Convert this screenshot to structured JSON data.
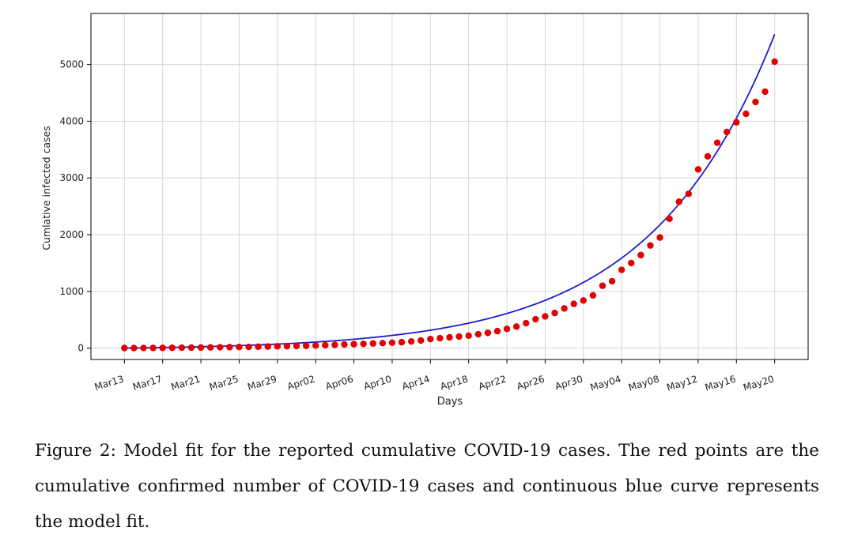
{
  "chart_data": {
    "type": "scatter",
    "xlabel": "Days",
    "ylabel": "Cumlative infected cases",
    "ylim": [
      -200,
      5900
    ],
    "yticks": [
      0,
      1000,
      2000,
      3000,
      4000,
      5000
    ],
    "xlim": [
      -3.5,
      71.5
    ],
    "grid": true,
    "x_tick_labels": [
      "Mar13",
      "Mar17",
      "Mar21",
      "Mar25",
      "Mar29",
      "Apr02",
      "Apr06",
      "Apr10",
      "Apr14",
      "Apr18",
      "Apr22",
      "Apr26",
      "Apr30",
      "May04",
      "May08",
      "May12",
      "May16",
      "May20"
    ],
    "x_tick_positions": [
      0,
      4,
      8,
      12,
      16,
      20,
      24,
      28,
      32,
      36,
      40,
      44,
      48,
      52,
      56,
      60,
      64,
      68
    ],
    "series": [
      {
        "name": "Reported cumulative cases",
        "kind": "points",
        "color": "#e30000",
        "x": [
          0,
          1,
          2,
          3,
          4,
          5,
          6,
          7,
          8,
          9,
          10,
          11,
          12,
          13,
          14,
          15,
          16,
          17,
          18,
          19,
          20,
          21,
          22,
          23,
          24,
          25,
          26,
          27,
          28,
          29,
          30,
          31,
          32,
          33,
          34,
          35,
          36,
          37,
          38,
          39,
          40,
          41,
          42,
          43,
          44,
          45,
          46,
          47,
          48,
          49,
          50,
          51,
          52,
          53,
          54,
          55,
          56,
          57,
          58,
          59,
          60,
          61,
          62,
          63,
          64,
          65,
          66,
          67,
          68
        ],
        "y": [
          2,
          2,
          3,
          4,
          5,
          6,
          8,
          9,
          11,
          13,
          15,
          18,
          20,
          22,
          25,
          28,
          32,
          35,
          38,
          42,
          46,
          52,
          58,
          64,
          70,
          76,
          82,
          88,
          95,
          105,
          118,
          135,
          160,
          175,
          190,
          205,
          220,
          245,
          270,
          300,
          340,
          380,
          440,
          510,
          560,
          620,
          700,
          780,
          840,
          930,
          1100,
          1180,
          1380,
          1500,
          1640,
          1810,
          1950,
          2280,
          2580,
          2720,
          3150,
          3380,
          3620,
          3810,
          3980,
          4130,
          4340,
          4520,
          5050
        ]
      },
      {
        "name": "Model fit",
        "kind": "line",
        "color": "#1c1cd4",
        "model": "y = a*exp(b*x) + c",
        "a": 29.2,
        "b": 0.0772,
        "c": -29.2,
        "x_range": [
          0,
          68
        ]
      }
    ]
  },
  "caption": {
    "text": "Figure 2: Model fit for the reported cumulative COVID-19 cases. The red points are the cumulative confirmed number of COVID-19 cases and continuous blue curve represents the model fit."
  }
}
